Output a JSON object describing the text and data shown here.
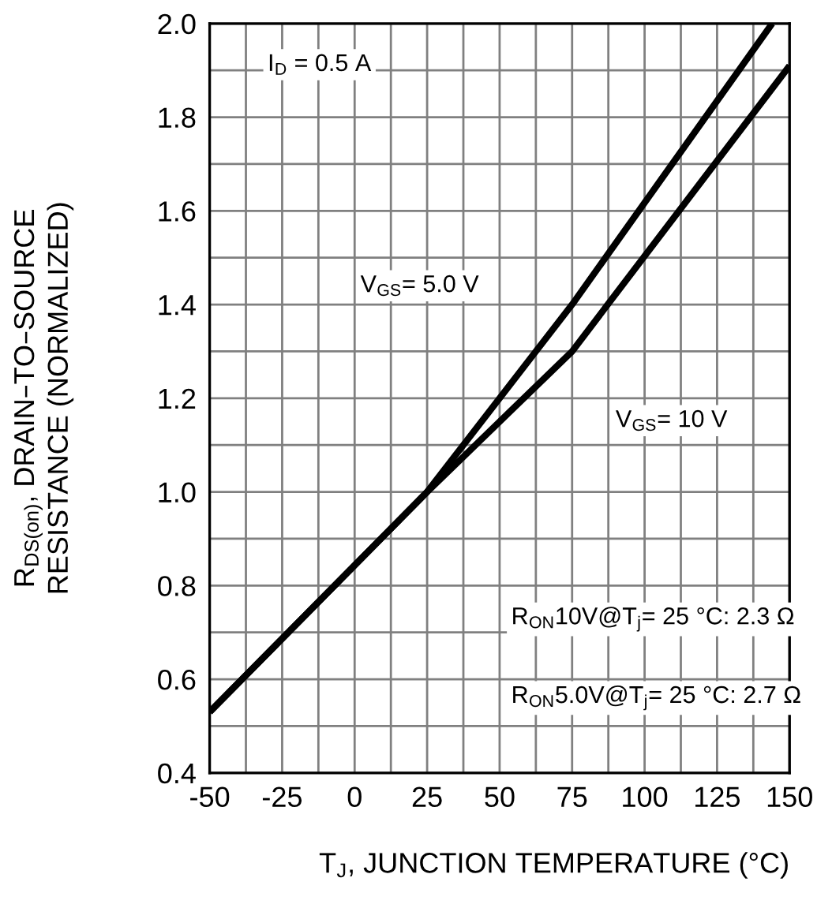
{
  "chart_data": {
    "type": "line",
    "xlabel": "T$_{J}$, JUNCTION TEMPERATURE (°C)",
    "ylabel": "R$_{DS(on)}$, DRAIN–TO–SOURCE\nRESISTANCE (NORMALIZED)",
    "series": [
      {
        "color": "#000000",
        "x": [
          -50,
          25,
          75,
          144
        ],
        "values": [
          0.53,
          1.0,
          1.4,
          2.0
        ]
      },
      {
        "color": "#000000",
        "x": [
          -50,
          25,
          75,
          150
        ],
        "values": [
          0.53,
          1.0,
          1.3,
          1.91
        ]
      }
    ],
    "annotations": [
      "I$_{D}$ = 0.5 A",
      "V$_{GS}$= 5.0 V",
      "V$_{GS}$= 10 V",
      "R$_{ON}$10V@T$_{j}$= 25 °C: 2.3 Ω",
      "R$_{ON}$5.0V@T$_{j}$= 25 °C: 2.7 Ω"
    ],
    "xlim": [
      -50,
      150
    ],
    "xticks": [
      -50,
      -25,
      0,
      25,
      50,
      75,
      100,
      125,
      150
    ],
    "ylim": [
      0.4,
      2.0
    ],
    "yticks": [
      {
        "value": 0.4,
        "label": "0.4"
      },
      {
        "value": 0.6,
        "label": "0.6"
      },
      {
        "value": 0.8,
        "label": "0.8"
      },
      {
        "value": 1.0,
        "label": "1.0"
      },
      {
        "value": 1.2,
        "label": "1.2"
      },
      {
        "value": 1.4,
        "label": "1.4"
      },
      {
        "value": 1.6,
        "label": "1.6"
      },
      {
        "value": 1.8,
        "label": "1.8"
      },
      {
        "value": 2.0,
        "label": "2.0"
      }
    ],
    "grid": true,
    "line_style": "solid",
    "marker": "none"
  }
}
